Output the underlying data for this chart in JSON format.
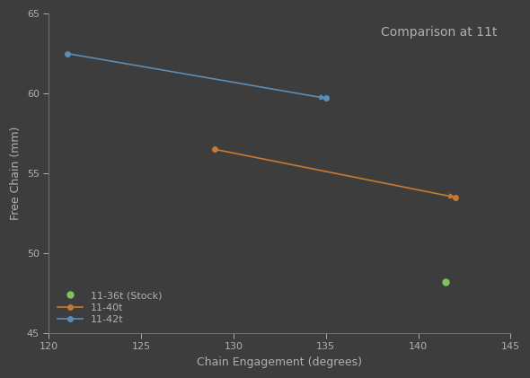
{
  "title": "Comparison at 11t",
  "xlabel": "Chain Engagement (degrees)",
  "ylabel": "Free Chain (mm)",
  "xlim": [
    120,
    145
  ],
  "ylim": [
    45,
    65
  ],
  "xticks": [
    120,
    125,
    130,
    135,
    140,
    145
  ],
  "yticks": [
    45,
    50,
    55,
    60,
    65
  ],
  "background_color": "#3d3d3d",
  "axes_color": "#3d3d3d",
  "text_color": "#b0b0b0",
  "spine_color": "#707070",
  "series": [
    {
      "label": "11-36t (Stock)",
      "x": [
        141.5
      ],
      "y": [
        48.2
      ],
      "color": "#7dc65a",
      "marker": "o",
      "marker_size": 5,
      "has_arrow": false
    },
    {
      "label": "11-40t",
      "x": [
        129.0,
        142.0
      ],
      "y": [
        56.5,
        53.5
      ],
      "color": "#c87830",
      "marker": "o",
      "marker_size": 4,
      "has_arrow": true
    },
    {
      "label": "11-42t",
      "x": [
        121.0,
        135.0
      ],
      "y": [
        62.5,
        59.7
      ],
      "color": "#5b8db5",
      "marker": "o",
      "marker_size": 4,
      "has_arrow": true
    }
  ],
  "title_fontsize": 10,
  "axis_label_fontsize": 9,
  "tick_fontsize": 8,
  "legend_fontsize": 8
}
